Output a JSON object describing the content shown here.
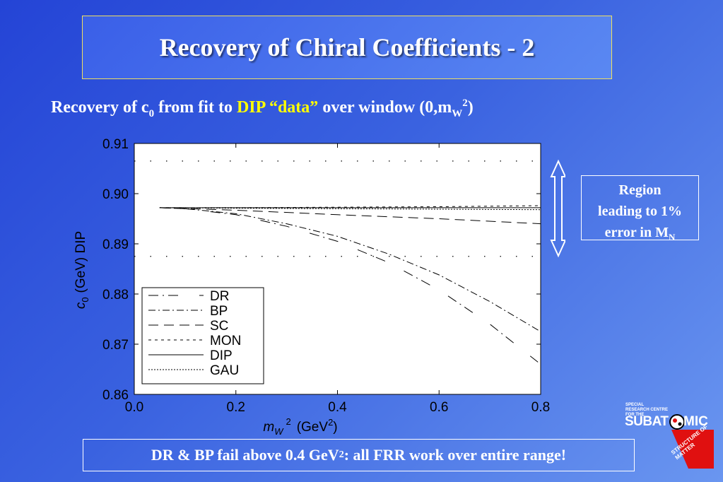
{
  "slide": {
    "title": "Recovery of Chiral Coefficients - 2",
    "subtitle_pre": "Recovery of c",
    "subtitle_c_sub": "0",
    "subtitle_mid": " from fit to ",
    "subtitle_hl": "DIP “data”",
    "subtitle_post": " over window (0,m",
    "subtitle_w_sub": "W",
    "subtitle_sup": "2",
    "subtitle_end": ")",
    "region_line1": "Region",
    "region_line2": "leading to 1%",
    "region_line3": "error in M",
    "region_sub": "N",
    "bottom_pre": "DR & BP fail above 0.4 GeV",
    "bottom_sup": "2",
    "bottom_post": " : all FRR work over entire range!",
    "logo_small": "SPECIAL RESEARCH CENTRE FOR THE",
    "logo_word_a": "SUBAT",
    "logo_word_b": "MIC",
    "logo_tagline": "STRUCTURE OF MATTER",
    "colors": {
      "highlight": "#ffff00",
      "background": "#3a62e0",
      "title_border": "#f0e060",
      "logo_red": "#e01010"
    }
  },
  "chart_data": {
    "type": "line",
    "xlabel_var": "m",
    "xlabel_sub": "W",
    "xlabel_sup": "2",
    "xlabel_unit": "(GeV",
    "xlabel_unit_sup": "2",
    "xlabel_unit_end": ")",
    "ylabel_var": "c",
    "ylabel_sub": "0",
    "ylabel_rest": "(GeV) DIP",
    "xlim": [
      0.0,
      0.8
    ],
    "ylim": [
      0.86,
      0.91
    ],
    "xticks": [
      0.0,
      0.2,
      0.4,
      0.6,
      0.8
    ],
    "xtick_labels": [
      "0.0",
      "0.2",
      "0.4",
      "0.6",
      "0.8"
    ],
    "yticks": [
      0.86,
      0.87,
      0.88,
      0.89,
      0.9,
      0.91
    ],
    "ytick_labels": [
      "0.86",
      "0.87",
      "0.88",
      "0.89",
      "0.90",
      "0.91"
    ],
    "reference_lines": [
      0.9065,
      0.8875
    ],
    "series": [
      {
        "name": "DR",
        "dash": "14 6 2 6 14 30",
        "x": [
          0.05,
          0.1,
          0.2,
          0.3,
          0.4,
          0.5,
          0.6,
          0.7,
          0.8
        ],
        "y": [
          0.8972,
          0.897,
          0.8958,
          0.8935,
          0.8905,
          0.8863,
          0.8808,
          0.874,
          0.866
        ]
      },
      {
        "name": "BP",
        "dash": "10 4 2 4",
        "x": [
          0.05,
          0.1,
          0.2,
          0.3,
          0.4,
          0.5,
          0.6,
          0.7,
          0.8
        ],
        "y": [
          0.8972,
          0.897,
          0.896,
          0.894,
          0.8915,
          0.888,
          0.8838,
          0.8785,
          0.8725
        ]
      },
      {
        "name": "SC",
        "dash": "14 8",
        "x": [
          0.05,
          0.2,
          0.4,
          0.6,
          0.8
        ],
        "y": [
          0.8972,
          0.8967,
          0.8958,
          0.895,
          0.894
        ]
      },
      {
        "name": "MON",
        "dash": "4 5",
        "x": [
          0.05,
          0.2,
          0.4,
          0.6,
          0.8
        ],
        "y": [
          0.8972,
          0.8972,
          0.8973,
          0.8974,
          0.8976
        ]
      },
      {
        "name": "DIP",
        "dash": "",
        "x": [
          0.05,
          0.8
        ],
        "y": [
          0.8972,
          0.8972
        ]
      },
      {
        "name": "GAU",
        "dash": "2 2",
        "x": [
          0.05,
          0.2,
          0.4,
          0.6,
          0.8
        ],
        "y": [
          0.8972,
          0.8971,
          0.897,
          0.8969,
          0.8968
        ]
      }
    ],
    "legend_position": "bottom-left",
    "grid": false
  }
}
